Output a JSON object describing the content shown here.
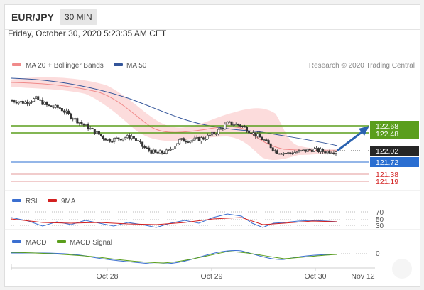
{
  "header": {
    "pair": "EUR/JPY",
    "timeframe": "30 MIN",
    "datetime": "Friday, October 30, 2020 5:23:35 AM CET"
  },
  "main_panel": {
    "legend": [
      {
        "label": "MA 20 + Bollinger Bands",
        "color": "#f08a8a"
      },
      {
        "label": "MA 50",
        "color": "#33559a"
      }
    ],
    "attribution": "Research © 2020 Trading Central",
    "levels": [
      {
        "label": "122.68",
        "value": 122.68,
        "color": "#5a9e1c",
        "role": "resistance"
      },
      {
        "label": "122.48",
        "value": 122.48,
        "color": "#5a9e1c",
        "role": "resistance"
      },
      {
        "label": "122.02",
        "value": 122.02,
        "color": "#222222",
        "role": "last"
      },
      {
        "label": "121.72",
        "value": 121.72,
        "color": "#2a6ed1",
        "role": "pivot"
      },
      {
        "label": "121.38",
        "value": 121.38,
        "color": "#d32020",
        "role": "support"
      },
      {
        "label": "121.19",
        "value": 121.19,
        "color": "#d32020",
        "role": "support"
      }
    ]
  },
  "rsi_panel": {
    "legend": [
      {
        "label": "RSI",
        "color": "#3b6fd0"
      },
      {
        "label": "9MA",
        "color": "#d32020"
      }
    ],
    "levels": [
      "70",
      "50",
      "30"
    ]
  },
  "macd_panel": {
    "legend": [
      {
        "label": "MACD",
        "color": "#3b6fd0"
      },
      {
        "label": "MACD Signal",
        "color": "#5a9e1c"
      }
    ],
    "levels": [
      "0"
    ]
  },
  "x_axis": {
    "labels": [
      "Oct 28",
      "Oct 29",
      "Oct 30",
      "Nov 12"
    ]
  },
  "chart_data": {
    "type": "candlestick",
    "symbol": "EUR/JPY",
    "close_approx": [
      123.35,
      123.3,
      123.4,
      123.2,
      123.15,
      122.9,
      122.7,
      122.5,
      122.3,
      122.35,
      122.4,
      122.1,
      121.95,
      122.0,
      122.3,
      122.3,
      122.35,
      122.5,
      122.75,
      122.7,
      122.5,
      122.3,
      122.0,
      121.95,
      122.0,
      122.05,
      122.0,
      122.02
    ],
    "resistance": [
      122.68,
      122.48
    ],
    "pivot": 121.72,
    "support": [
      121.38,
      121.19
    ],
    "last": 122.02
  }
}
